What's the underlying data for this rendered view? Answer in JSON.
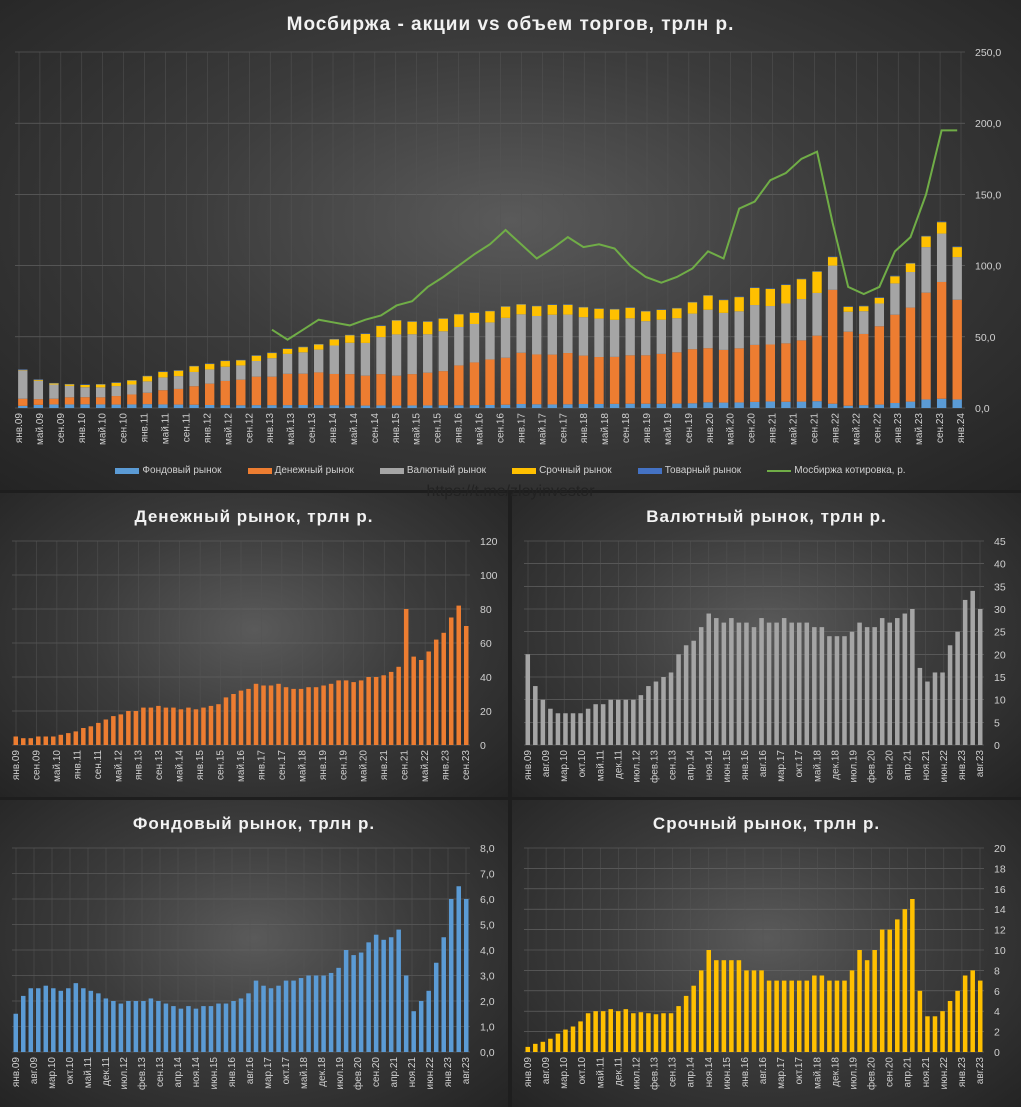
{
  "source_link": "https://t.me/zloyinvestor",
  "colors": {
    "stock": "#5b9bd5",
    "money": "#ed7d31",
    "fx": "#a5a5a5",
    "deriv": "#ffc000",
    "commodity": "#4472c4",
    "price": "#70ad47"
  },
  "chart_data": [
    {
      "id": "main",
      "type": "bar+line",
      "title": "Мосбиржа  - акции vs объем торгов,  трлн  р.",
      "ylim": [
        0,
        250
      ],
      "yticks": [
        "0,0",
        "50,0",
        "100,0",
        "150,0",
        "200,0",
        "250,0"
      ],
      "xticks": [
        "янв.09",
        "май.09",
        "сен.09",
        "янв.10",
        "май.10",
        "сен.10",
        "янв.11",
        "май.11",
        "сен.11",
        "янв.12",
        "май.12",
        "сен.12",
        "янв.13",
        "май.13",
        "сен.13",
        "янв.14",
        "май.14",
        "сен.14",
        "янв.15",
        "май.15",
        "сен.15",
        "янв.16",
        "май.16",
        "сен.16",
        "янв.17",
        "май.17",
        "сен.17",
        "янв.18",
        "май.18",
        "сен.18",
        "янв.19",
        "май.19",
        "сен.19",
        "янв.20",
        "май.20",
        "сен.20",
        "янв.21",
        "май.21",
        "сен.21",
        "янв.22",
        "май.22",
        "сен.22",
        "янв.23",
        "май.23",
        "сен.23",
        "янв.24"
      ],
      "x_period": "quarterly, Q1 2009 – Q1 2024 (approx.)",
      "legend": [
        "Фондовый рынок",
        "Денежный рынок",
        "Валютный рынок",
        "Срочный рынок",
        "Товарный рынок",
        "Мосбиржа котировка, р."
      ],
      "legend_position": "bottom",
      "series": [
        {
          "name": "Фондовый рынок",
          "key": "stock",
          "values": [
            1.5,
            2.2,
            2.5,
            2.5,
            2.6,
            2.5,
            2.4,
            2.5,
            2.7,
            2.5,
            2.4,
            2.3,
            2.1,
            2.0,
            1.9,
            2.0,
            2.0,
            2.0,
            2.1,
            2.0,
            1.9,
            1.8,
            1.7,
            1.8,
            1.7,
            1.8,
            1.8,
            1.9,
            1.9,
            2.0,
            2.1,
            2.3,
            2.8,
            2.6,
            2.5,
            2.6,
            2.8,
            2.8,
            2.9,
            3.0,
            3.0,
            3.0,
            3.1,
            3.3,
            4.0,
            3.8,
            3.9,
            4.3,
            4.6,
            4.4,
            4.5,
            4.8,
            3.0,
            1.6,
            2.0,
            2.4,
            3.5,
            4.5,
            6.0,
            6.5,
            6.0
          ]
        },
        {
          "name": "Денежный рынок",
          "key": "money",
          "values": [
            5,
            4,
            4,
            5,
            5,
            5,
            6,
            7,
            8,
            10,
            11,
            13,
            15,
            17,
            18,
            20,
            20,
            22,
            22,
            23,
            22,
            22,
            21,
            22,
            21,
            22,
            23,
            24,
            28,
            30,
            32,
            33,
            36,
            35,
            35,
            36,
            34,
            33,
            33,
            34,
            34,
            35,
            36,
            38,
            38,
            37,
            38,
            40,
            40,
            41,
            43,
            46,
            80,
            52,
            50,
            55,
            62,
            66,
            75,
            82,
            70
          ]
        },
        {
          "name": "Валютный рынок",
          "key": "fx",
          "values": [
            20,
            13,
            10,
            8,
            7,
            7,
            7,
            7,
            8,
            9,
            9,
            10,
            10,
            10,
            10,
            11,
            13,
            14,
            15,
            16,
            20,
            22,
            23,
            26,
            29,
            28,
            27,
            28,
            27,
            27,
            26,
            28,
            27,
            27,
            28,
            27,
            27,
            27,
            26,
            26,
            24,
            24,
            24,
            25,
            27,
            26,
            26,
            28,
            27,
            28,
            29,
            30,
            17,
            14,
            16,
            16,
            22,
            25,
            32,
            34,
            30
          ]
        },
        {
          "name": "Срочный рынок",
          "key": "deriv",
          "values": [
            0.5,
            0.8,
            1.0,
            1.3,
            1.8,
            2.2,
            2.5,
            3.0,
            3.8,
            4.0,
            4.0,
            4.2,
            4.0,
            4.2,
            3.8,
            3.9,
            3.8,
            3.7,
            3.8,
            3.8,
            4.5,
            5.5,
            6.5,
            8.0,
            10,
            9,
            9,
            9,
            9,
            8,
            8,
            8,
            7,
            7,
            7,
            7,
            7,
            7,
            7.5,
            7.5,
            7,
            7,
            7,
            8,
            10,
            9,
            10,
            12,
            12,
            13,
            14,
            15,
            6,
            3.5,
            3.5,
            4,
            5,
            6,
            7.5,
            8,
            7
          ]
        },
        {
          "name": "Товарный рынок",
          "key": "commodity",
          "values": [
            0.1,
            0.1,
            0.1,
            0.1,
            0.1,
            0.1,
            0.1,
            0.1,
            0.1,
            0.1,
            0.1,
            0.1,
            0.1,
            0.1,
            0.1,
            0.1,
            0.1,
            0.1,
            0.1,
            0.1,
            0.1,
            0.1,
            0.1,
            0.1,
            0.1,
            0.1,
            0.1,
            0.1,
            0.2,
            0.2,
            0.2,
            0.2,
            0.2,
            0.2,
            0.2,
            0.2,
            0.2,
            0.2,
            0.2,
            0.2,
            0.2,
            0.2,
            0.2,
            0.2,
            0.3,
            0.3,
            0.3,
            0.3,
            0.3,
            0.3,
            0.3,
            0.3,
            0.3,
            0.3,
            0.3,
            0.3,
            0.4,
            0.4,
            0.4,
            0.4,
            0.4
          ]
        },
        {
          "name": "Мосбиржа котировка, р.",
          "key": "price",
          "type": "line",
          "values": [
            null,
            null,
            null,
            null,
            null,
            null,
            null,
            null,
            null,
            null,
            null,
            null,
            null,
            null,
            null,
            null,
            55,
            48,
            55,
            62,
            60,
            58,
            62,
            65,
            72,
            75,
            85,
            92,
            100,
            108,
            115,
            125,
            115,
            105,
            112,
            120,
            113,
            115,
            112,
            100,
            92,
            88,
            92,
            98,
            110,
            105,
            140,
            145,
            160,
            165,
            175,
            180,
            130,
            85,
            80,
            85,
            110,
            120,
            150,
            195,
            195
          ]
        }
      ]
    },
    {
      "id": "money",
      "type": "bar",
      "title": "Денежный рынок, трлн р.",
      "series_key": "money",
      "ylim": [
        0,
        120
      ],
      "yticks": [
        "0",
        "20",
        "40",
        "60",
        "80",
        "100",
        "120"
      ],
      "xticks": [
        "янв.09",
        "сен.09",
        "май.10",
        "янв.11",
        "сен.11",
        "май.12",
        "янв.13",
        "сен.13",
        "май.14",
        "янв.15",
        "сен.15",
        "май.16",
        "янв.17",
        "сен.17",
        "май.18",
        "янв.19",
        "сен.19",
        "май.20",
        "янв.21",
        "сен.21",
        "май.22",
        "янв.23",
        "сен.23"
      ]
    },
    {
      "id": "fx",
      "type": "bar",
      "title": "Валютный рынок, трлн р.",
      "series_key": "fx",
      "ylim": [
        0,
        45
      ],
      "yticks": [
        "0",
        "5",
        "10",
        "15",
        "20",
        "25",
        "30",
        "35",
        "40",
        "45"
      ],
      "xticks": [
        "янв.09",
        "авг.09",
        "мар.10",
        "окт.10",
        "май.11",
        "дек.11",
        "июл.12",
        "фев.13",
        "сен.13",
        "апр.14",
        "ноя.14",
        "июн.15",
        "янв.16",
        "авг.16",
        "мар.17",
        "окт.17",
        "май.18",
        "дек.18",
        "июл.19",
        "фев.20",
        "сен.20",
        "апр.21",
        "ноя.21",
        "июн.22",
        "янв.23",
        "авг.23"
      ]
    },
    {
      "id": "stock",
      "type": "bar",
      "title": "Фондовый рынок, трлн р.",
      "series_key": "stock",
      "ylim": [
        0,
        8
      ],
      "yticks": [
        "0,0",
        "1,0",
        "2,0",
        "3,0",
        "4,0",
        "5,0",
        "6,0",
        "7,0",
        "8,0"
      ],
      "xticks": [
        "янв.09",
        "авг.09",
        "мар.10",
        "окт.10",
        "май.11",
        "дек.11",
        "июл.12",
        "фев.13",
        "сен.13",
        "апр.14",
        "ноя.14",
        "июн.15",
        "янв.16",
        "авг.16",
        "мар.17",
        "окт.17",
        "май.18",
        "дек.18",
        "июл.19",
        "фев.20",
        "сен.20",
        "апр.21",
        "ноя.21",
        "июн.22",
        "янв.23",
        "авг.23"
      ]
    },
    {
      "id": "deriv",
      "type": "bar",
      "title": "Срочный рынок, трлн р.",
      "series_key": "deriv",
      "ylim": [
        0,
        20
      ],
      "yticks": [
        "0",
        "2",
        "4",
        "6",
        "8",
        "10",
        "12",
        "14",
        "16",
        "18",
        "20"
      ],
      "xticks": [
        "янв.09",
        "авг.09",
        "мар.10",
        "окт.10",
        "май.11",
        "дек.11",
        "июл.12",
        "фев.13",
        "сен.13",
        "апр.14",
        "ноя.14",
        "июн.15",
        "янв.16",
        "авг.16",
        "мар.17",
        "окт.17",
        "май.18",
        "дек.18",
        "июл.19",
        "фев.20",
        "сен.20",
        "апр.21",
        "ноя.21",
        "июн.22",
        "янв.23",
        "авг.23"
      ]
    }
  ]
}
